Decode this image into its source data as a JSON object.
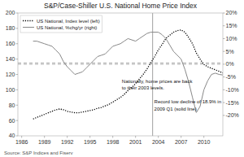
{
  "chart_data": {
    "type": "line",
    "title": "S&P/Case-Shiller U.S. National Home Price Index",
    "source": "Source: S&P Indices and Fiserv",
    "x": [
      1987.5,
      1988,
      1988.5,
      1989,
      1989.5,
      1990,
      1990.5,
      1991,
      1991.5,
      1992,
      1992.5,
      1993,
      1993.5,
      1994,
      1994.5,
      1995,
      1995.5,
      1996,
      1996.5,
      1997,
      1997.5,
      1998,
      1998.5,
      1999,
      1999.5,
      2000,
      2000.5,
      2001,
      2001.5,
      2002,
      2002.5,
      2003,
      2003.5,
      2004,
      2004.5,
      2005,
      2005.5,
      2006,
      2006.5,
      2007,
      2007.5,
      2008,
      2008.5,
      2009,
      2009.5,
      2010,
      2010.5,
      2011,
      2011.5,
      2012,
      2012.5
    ],
    "series": [
      {
        "name": "US National, Index level (left)",
        "color": "#000000",
        "line_style": "dotted",
        "values": [
          62,
          64,
          66,
          68,
          70,
          72,
          74,
          75,
          74,
          72,
          71,
          70,
          70,
          71,
          72,
          73,
          74,
          76,
          77,
          79,
          81,
          84,
          87,
          90,
          94,
          99,
          103,
          108,
          114,
          120,
          127,
          135,
          143,
          152,
          159,
          167,
          171,
          175,
          177,
          178,
          175,
          168,
          160,
          148,
          140,
          133,
          130,
          128,
          126,
          124,
          122
        ]
      },
      {
        "name": "US National, %chg/yr (right)",
        "color": "#888888",
        "line_style": "solid",
        "axis": "y2",
        "values": [
          0.09,
          0.09,
          0.085,
          0.08,
          0.075,
          0.07,
          0.055,
          0.04,
          0.01,
          -0.01,
          -0.025,
          -0.04,
          -0.035,
          -0.03,
          -0.015,
          0.0,
          0.015,
          0.03,
          0.035,
          0.04,
          0.055,
          0.07,
          0.075,
          0.08,
          0.09,
          0.1,
          0.095,
          0.09,
          0.1,
          0.11,
          0.12,
          0.125,
          0.125,
          0.125,
          0.115,
          0.1,
          0.075,
          0.05,
          0.035,
          0.02,
          -0.02,
          -0.07,
          -0.13,
          -0.189,
          -0.165,
          -0.1,
          -0.065,
          -0.04,
          -0.035,
          -0.04,
          -0.042
        ]
      }
    ],
    "xlim": [
      1985.5,
      2012.5
    ],
    "xticks": [
      1986,
      1989,
      1992,
      1995,
      1998,
      2001,
      2004,
      2007,
      2010
    ],
    "ylim": [
      40,
      200
    ],
    "yticks": [
      40,
      60,
      80,
      100,
      120,
      140,
      160,
      180,
      200
    ],
    "y2lim": [
      -0.28,
      0.2
    ],
    "y2ticks": [
      {
        "value": -0.2,
        "label": "-20%"
      },
      {
        "value": -0.15,
        "label": "-15%"
      },
      {
        "value": -0.1,
        "label": "-10%"
      },
      {
        "value": -0.05,
        "label": "-5%"
      },
      {
        "value": 0.0,
        "label": "0%"
      },
      {
        "value": 0.05,
        "label": "5%"
      },
      {
        "value": 0.1,
        "label": "10%"
      },
      {
        "value": 0.15,
        "label": "15%"
      },
      {
        "value": 0.2,
        "label": "20%"
      }
    ],
    "reference_lines": {
      "y": [
        135
      ],
      "y2": [
        0.0
      ],
      "x": [
        2003.25
      ]
    },
    "annotations": [
      {
        "text": [
          "Nationally, home prices are back",
          "to their 2003 levels."
        ],
        "x": 1999.2,
        "y": 115
      },
      {
        "text": [
          "Record low decline of 18.9% in",
          "2009 Q1 (solid line)"
        ],
        "x": 2007.3,
        "y": 88
      }
    ],
    "legend": "upper left",
    "grid": false
  }
}
